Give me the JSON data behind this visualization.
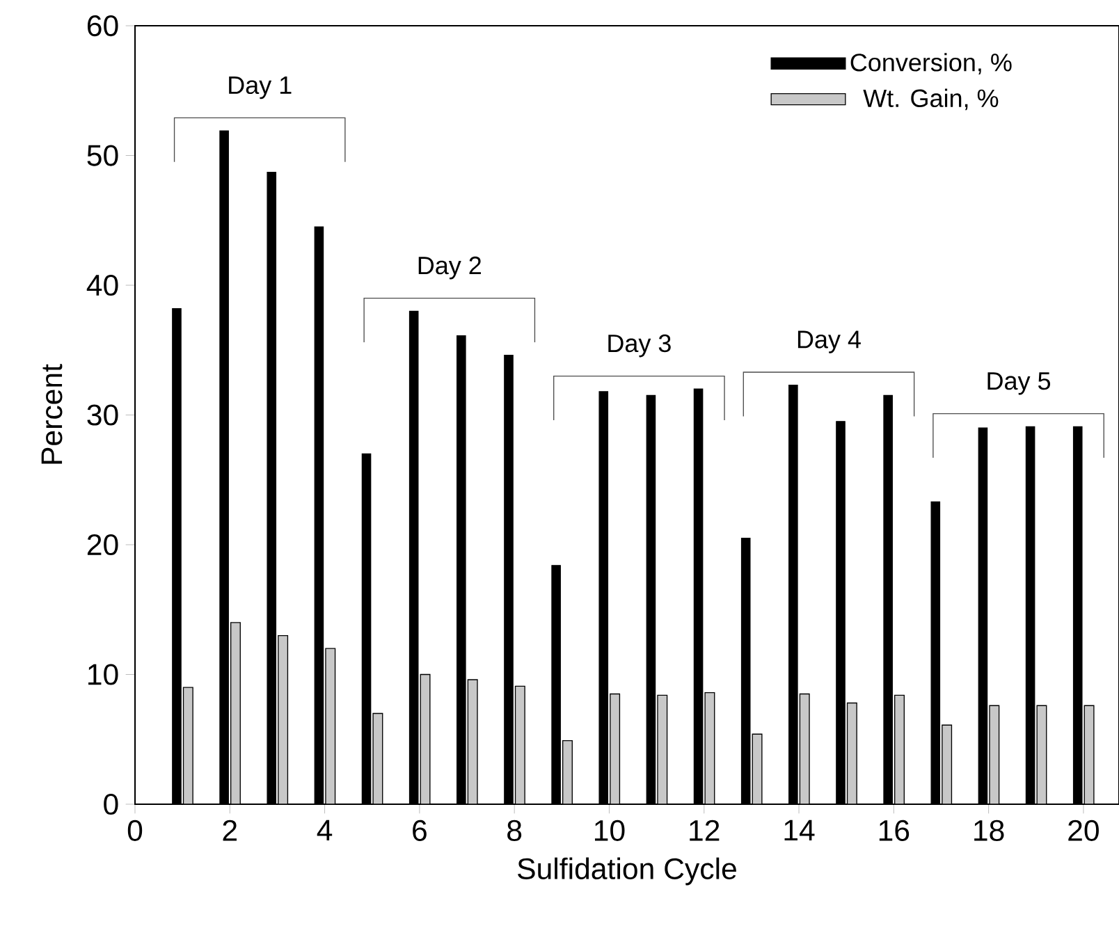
{
  "chart_data": {
    "type": "bar",
    "xlabel": "Sulfidation Cycle",
    "ylabel": "Percent",
    "x": [
      1,
      2,
      3,
      4,
      5,
      6,
      7,
      8,
      9,
      10,
      11,
      12,
      13,
      14,
      15,
      16,
      17,
      18,
      19,
      20
    ],
    "series": [
      {
        "name": "Conversion, %",
        "color": "#000000",
        "values": [
          38.2,
          51.9,
          48.7,
          44.5,
          27.0,
          38.0,
          36.1,
          34.6,
          18.4,
          31.8,
          31.5,
          32.0,
          20.5,
          32.3,
          29.5,
          31.5,
          23.3,
          29.0,
          29.1,
          29.1
        ]
      },
      {
        "name": "Wt. Gain, %",
        "color": "#c8c8c8",
        "values": [
          9.0,
          14.0,
          13.0,
          12.0,
          7.0,
          10.0,
          9.6,
          9.1,
          4.9,
          8.5,
          8.4,
          8.6,
          5.4,
          8.5,
          7.8,
          8.4,
          6.1,
          7.6,
          7.6,
          7.6
        ]
      }
    ],
    "xlim": [
      0,
      20.75
    ],
    "xticks": [
      0,
      2,
      4,
      6,
      8,
      10,
      12,
      14,
      16,
      18,
      20
    ],
    "ylim": [
      0,
      60
    ],
    "yticks": [
      0,
      10,
      20,
      30,
      40,
      50,
      60
    ],
    "legend": "top right",
    "grid": false,
    "annotations": [
      "Day 1",
      "Day 2",
      "Day 3",
      "Day 4",
      "Day 5"
    ]
  }
}
